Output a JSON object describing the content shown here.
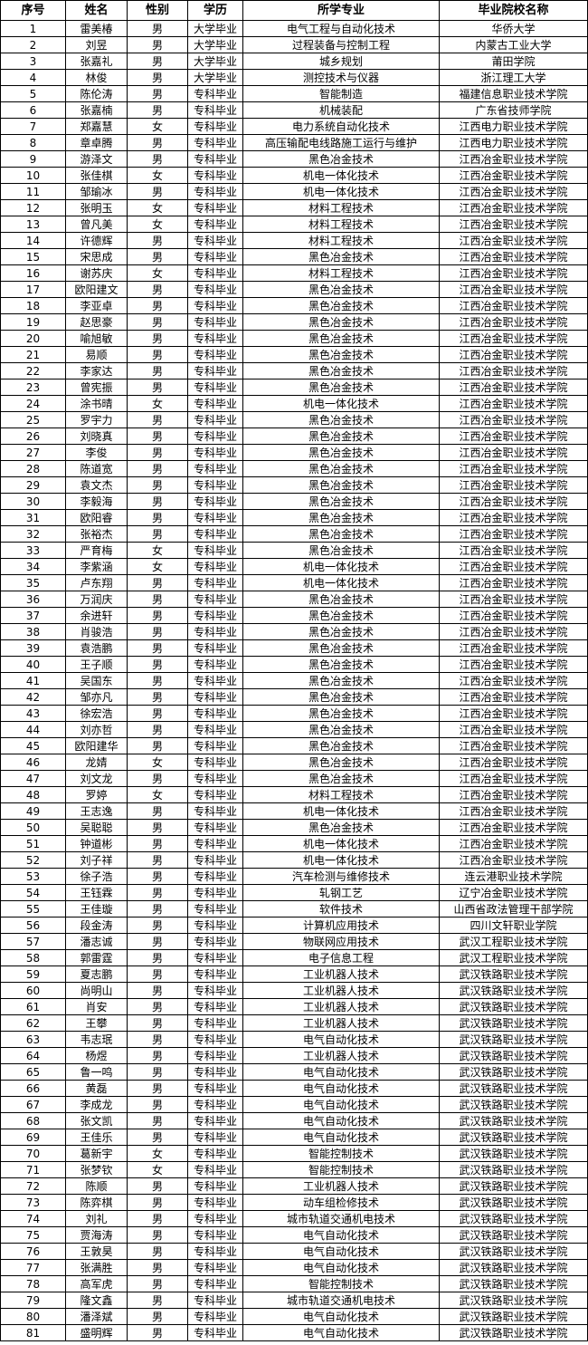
{
  "table": {
    "headers": [
      "序号",
      "姓名",
      "性别",
      "学历",
      "所学专业",
      "毕业院校名称"
    ],
    "rows": [
      [
        "1",
        "雷美椿",
        "男",
        "大学毕业",
        "电气工程与自动化技术",
        "华侨大学"
      ],
      [
        "2",
        "刘昱",
        "男",
        "大学毕业",
        "过程装备与控制工程",
        "内蒙古工业大学"
      ],
      [
        "3",
        "张嘉礼",
        "男",
        "大学毕业",
        "城乡规划",
        "莆田学院"
      ],
      [
        "4",
        "林俊",
        "男",
        "大学毕业",
        "测控技术与仪器",
        "浙江理工大学"
      ],
      [
        "5",
        "陈伦涛",
        "男",
        "专科毕业",
        "智能制造",
        "福建信息职业技术学院"
      ],
      [
        "6",
        "张嘉楠",
        "男",
        "专科毕业",
        "机械装配",
        "广东省技师学院"
      ],
      [
        "7",
        "郑嘉慧",
        "女",
        "专科毕业",
        "电力系统自动化技术",
        "江西电力职业技术学院"
      ],
      [
        "8",
        "章卓腾",
        "男",
        "专科毕业",
        "高压输配电线路施工运行与维护",
        "江西电力职业技术学院"
      ],
      [
        "9",
        "游泽文",
        "男",
        "专科毕业",
        "黑色冶金技术",
        "江西冶金职业技术学院"
      ],
      [
        "10",
        "张佳棋",
        "女",
        "专科毕业",
        "机电一体化技术",
        "江西冶金职业技术学院"
      ],
      [
        "11",
        "邹瑜冰",
        "男",
        "专科毕业",
        "机电一体化技术",
        "江西冶金职业技术学院"
      ],
      [
        "12",
        "张明玉",
        "女",
        "专科毕业",
        "材料工程技术",
        "江西冶金职业技术学院"
      ],
      [
        "13",
        "曾凡美",
        "女",
        "专科毕业",
        "材料工程技术",
        "江西冶金职业技术学院"
      ],
      [
        "14",
        "许德辉",
        "男",
        "专科毕业",
        "材料工程技术",
        "江西冶金职业技术学院"
      ],
      [
        "15",
        "宋思成",
        "男",
        "专科毕业",
        "黑色冶金技术",
        "江西冶金职业技术学院"
      ],
      [
        "16",
        "谢苏庆",
        "女",
        "专科毕业",
        "材料工程技术",
        "江西冶金职业技术学院"
      ],
      [
        "17",
        "欧阳建文",
        "男",
        "专科毕业",
        "黑色冶金技术",
        "江西冶金职业技术学院"
      ],
      [
        "18",
        "李亚卓",
        "男",
        "专科毕业",
        "黑色冶金技术",
        "江西冶金职业技术学院"
      ],
      [
        "19",
        "赵思豪",
        "男",
        "专科毕业",
        "黑色冶金技术",
        "江西冶金职业技术学院"
      ],
      [
        "20",
        "喻旭敏",
        "男",
        "专科毕业",
        "黑色冶金技术",
        "江西冶金职业技术学院"
      ],
      [
        "21",
        "易顺",
        "男",
        "专科毕业",
        "黑色冶金技术",
        "江西冶金职业技术学院"
      ],
      [
        "22",
        "李家达",
        "男",
        "专科毕业",
        "黑色冶金技术",
        "江西冶金职业技术学院"
      ],
      [
        "23",
        "曾宪振",
        "男",
        "专科毕业",
        "黑色冶金技术",
        "江西冶金职业技术学院"
      ],
      [
        "24",
        "涂书晴",
        "女",
        "专科毕业",
        "机电一体化技术",
        "江西冶金职业技术学院"
      ],
      [
        "25",
        "罗宇力",
        "男",
        "专科毕业",
        "黑色冶金技术",
        "江西冶金职业技术学院"
      ],
      [
        "26",
        "刘晓真",
        "男",
        "专科毕业",
        "黑色冶金技术",
        "江西冶金职业技术学院"
      ],
      [
        "27",
        "李俊",
        "男",
        "专科毕业",
        "黑色冶金技术",
        "江西冶金职业技术学院"
      ],
      [
        "28",
        "陈道宽",
        "男",
        "专科毕业",
        "黑色冶金技术",
        "江西冶金职业技术学院"
      ],
      [
        "29",
        "袁文杰",
        "男",
        "专科毕业",
        "黑色冶金技术",
        "江西冶金职业技术学院"
      ],
      [
        "30",
        "李毅海",
        "男",
        "专科毕业",
        "黑色冶金技术",
        "江西冶金职业技术学院"
      ],
      [
        "31",
        "欧阳睿",
        "男",
        "专科毕业",
        "黑色冶金技术",
        "江西冶金职业技术学院"
      ],
      [
        "32",
        "张裕杰",
        "男",
        "专科毕业",
        "黑色冶金技术",
        "江西冶金职业技术学院"
      ],
      [
        "33",
        "严育梅",
        "女",
        "专科毕业",
        "黑色冶金技术",
        "江西冶金职业技术学院"
      ],
      [
        "34",
        "李紫涵",
        "女",
        "专科毕业",
        "机电一体化技术",
        "江西冶金职业技术学院"
      ],
      [
        "35",
        "卢东翔",
        "男",
        "专科毕业",
        "机电一体化技术",
        "江西冶金职业技术学院"
      ],
      [
        "36",
        "万润庆",
        "男",
        "专科毕业",
        "黑色冶金技术",
        "江西冶金职业技术学院"
      ],
      [
        "37",
        "余进轩",
        "男",
        "专科毕业",
        "黑色冶金技术",
        "江西冶金职业技术学院"
      ],
      [
        "38",
        "肖骏浩",
        "男",
        "专科毕业",
        "黑色冶金技术",
        "江西冶金职业技术学院"
      ],
      [
        "39",
        "袁浩鹏",
        "男",
        "专科毕业",
        "黑色冶金技术",
        "江西冶金职业技术学院"
      ],
      [
        "40",
        "王子顺",
        "男",
        "专科毕业",
        "黑色冶金技术",
        "江西冶金职业技术学院"
      ],
      [
        "41",
        "吴国东",
        "男",
        "专科毕业",
        "黑色冶金技术",
        "江西冶金职业技术学院"
      ],
      [
        "42",
        "邹亦凡",
        "男",
        "专科毕业",
        "黑色冶金技术",
        "江西冶金职业技术学院"
      ],
      [
        "43",
        "徐宏浩",
        "男",
        "专科毕业",
        "黑色冶金技术",
        "江西冶金职业技术学院"
      ],
      [
        "44",
        "刘亦哲",
        "男",
        "专科毕业",
        "黑色冶金技术",
        "江西冶金职业技术学院"
      ],
      [
        "45",
        "欧阳建华",
        "男",
        "专科毕业",
        "黑色冶金技术",
        "江西冶金职业技术学院"
      ],
      [
        "46",
        "龙婧",
        "女",
        "专科毕业",
        "黑色冶金技术",
        "江西冶金职业技术学院"
      ],
      [
        "47",
        "刘文龙",
        "男",
        "专科毕业",
        "黑色冶金技术",
        "江西冶金职业技术学院"
      ],
      [
        "48",
        "罗婷",
        "女",
        "专科毕业",
        "材料工程技术",
        "江西冶金职业技术学院"
      ],
      [
        "49",
        "王志逸",
        "男",
        "专科毕业",
        "机电一体化技术",
        "江西冶金职业技术学院"
      ],
      [
        "50",
        "吴聪聪",
        "男",
        "专科毕业",
        "黑色冶金技术",
        "江西冶金职业技术学院"
      ],
      [
        "51",
        "钟道彬",
        "男",
        "专科毕业",
        "机电一体化技术",
        "江西冶金职业技术学院"
      ],
      [
        "52",
        "刘子祥",
        "男",
        "专科毕业",
        "机电一体化技术",
        "江西冶金职业技术学院"
      ],
      [
        "53",
        "徐子浩",
        "男",
        "专科毕业",
        "汽车检测与维修技术",
        "连云港职业技术学院"
      ],
      [
        "54",
        "王钰霖",
        "男",
        "专科毕业",
        "轧钢工艺",
        "辽宁冶金职业技术学院"
      ],
      [
        "55",
        "王佳璇",
        "男",
        "专科毕业",
        "软件技术",
        "山西省政法管理干部学院"
      ],
      [
        "56",
        "段金涛",
        "男",
        "专科毕业",
        "计算机应用技术",
        "四川文轩职业学院"
      ],
      [
        "57",
        "潘志诚",
        "男",
        "专科毕业",
        "物联网应用技术",
        "武汉工程职业技术学院"
      ],
      [
        "58",
        "郭雷霆",
        "男",
        "专科毕业",
        "电子信息工程",
        "武汉工程职业技术学院"
      ],
      [
        "59",
        "夏志鹏",
        "男",
        "专科毕业",
        "工业机器人技术",
        "武汉铁路职业技术学院"
      ],
      [
        "60",
        "尚明山",
        "男",
        "专科毕业",
        "工业机器人技术",
        "武汉铁路职业技术学院"
      ],
      [
        "61",
        "肖安",
        "男",
        "专科毕业",
        "工业机器人技术",
        "武汉铁路职业技术学院"
      ],
      [
        "62",
        "王攀",
        "男",
        "专科毕业",
        "工业机器人技术",
        "武汉铁路职业技术学院"
      ],
      [
        "63",
        "韦志珉",
        "男",
        "专科毕业",
        "电气自动化技术",
        "武汉铁路职业技术学院"
      ],
      [
        "64",
        "杨煜",
        "男",
        "专科毕业",
        "工业机器人技术",
        "武汉铁路职业技术学院"
      ],
      [
        "65",
        "鲁一鸣",
        "男",
        "专科毕业",
        "电气自动化技术",
        "武汉铁路职业技术学院"
      ],
      [
        "66",
        "黄磊",
        "男",
        "专科毕业",
        "电气自动化技术",
        "武汉铁路职业技术学院"
      ],
      [
        "67",
        "李成龙",
        "男",
        "专科毕业",
        "电气自动化技术",
        "武汉铁路职业技术学院"
      ],
      [
        "68",
        "张文凯",
        "男",
        "专科毕业",
        "电气自动化技术",
        "武汉铁路职业技术学院"
      ],
      [
        "69",
        "王佳乐",
        "男",
        "专科毕业",
        "电气自动化技术",
        "武汉铁路职业技术学院"
      ],
      [
        "70",
        "葛新宇",
        "女",
        "专科毕业",
        "智能控制技术",
        "武汉铁路职业技术学院"
      ],
      [
        "71",
        "张梦钦",
        "女",
        "专科毕业",
        "智能控制技术",
        "武汉铁路职业技术学院"
      ],
      [
        "72",
        "陈顺",
        "男",
        "专科毕业",
        "工业机器人技术",
        "武汉铁路职业技术学院"
      ],
      [
        "73",
        "陈弈棋",
        "男",
        "专科毕业",
        "动车组检修技术",
        "武汉铁路职业技术学院"
      ],
      [
        "74",
        "刘礼",
        "男",
        "专科毕业",
        "城市轨道交通机电技术",
        "武汉铁路职业技术学院"
      ],
      [
        "75",
        "贾海涛",
        "男",
        "专科毕业",
        "电气自动化技术",
        "武汉铁路职业技术学院"
      ],
      [
        "76",
        "王敦昊",
        "男",
        "专科毕业",
        "电气自动化技术",
        "武汉铁路职业技术学院"
      ],
      [
        "77",
        "张满胜",
        "男",
        "专科毕业",
        "电气自动化技术",
        "武汉铁路职业技术学院"
      ],
      [
        "78",
        "高军虎",
        "男",
        "专科毕业",
        "智能控制技术",
        "武汉铁路职业技术学院"
      ],
      [
        "79",
        "隆文鑫",
        "男",
        "专科毕业",
        "城市轨道交通机电技术",
        "武汉铁路职业技术学院"
      ],
      [
        "80",
        "潘泽斌",
        "男",
        "专科毕业",
        "电气自动化技术",
        "武汉铁路职业技术学院"
      ],
      [
        "81",
        "盛明辉",
        "男",
        "专科毕业",
        "电气自动化技术",
        "武汉铁路职业技术学院"
      ]
    ]
  }
}
